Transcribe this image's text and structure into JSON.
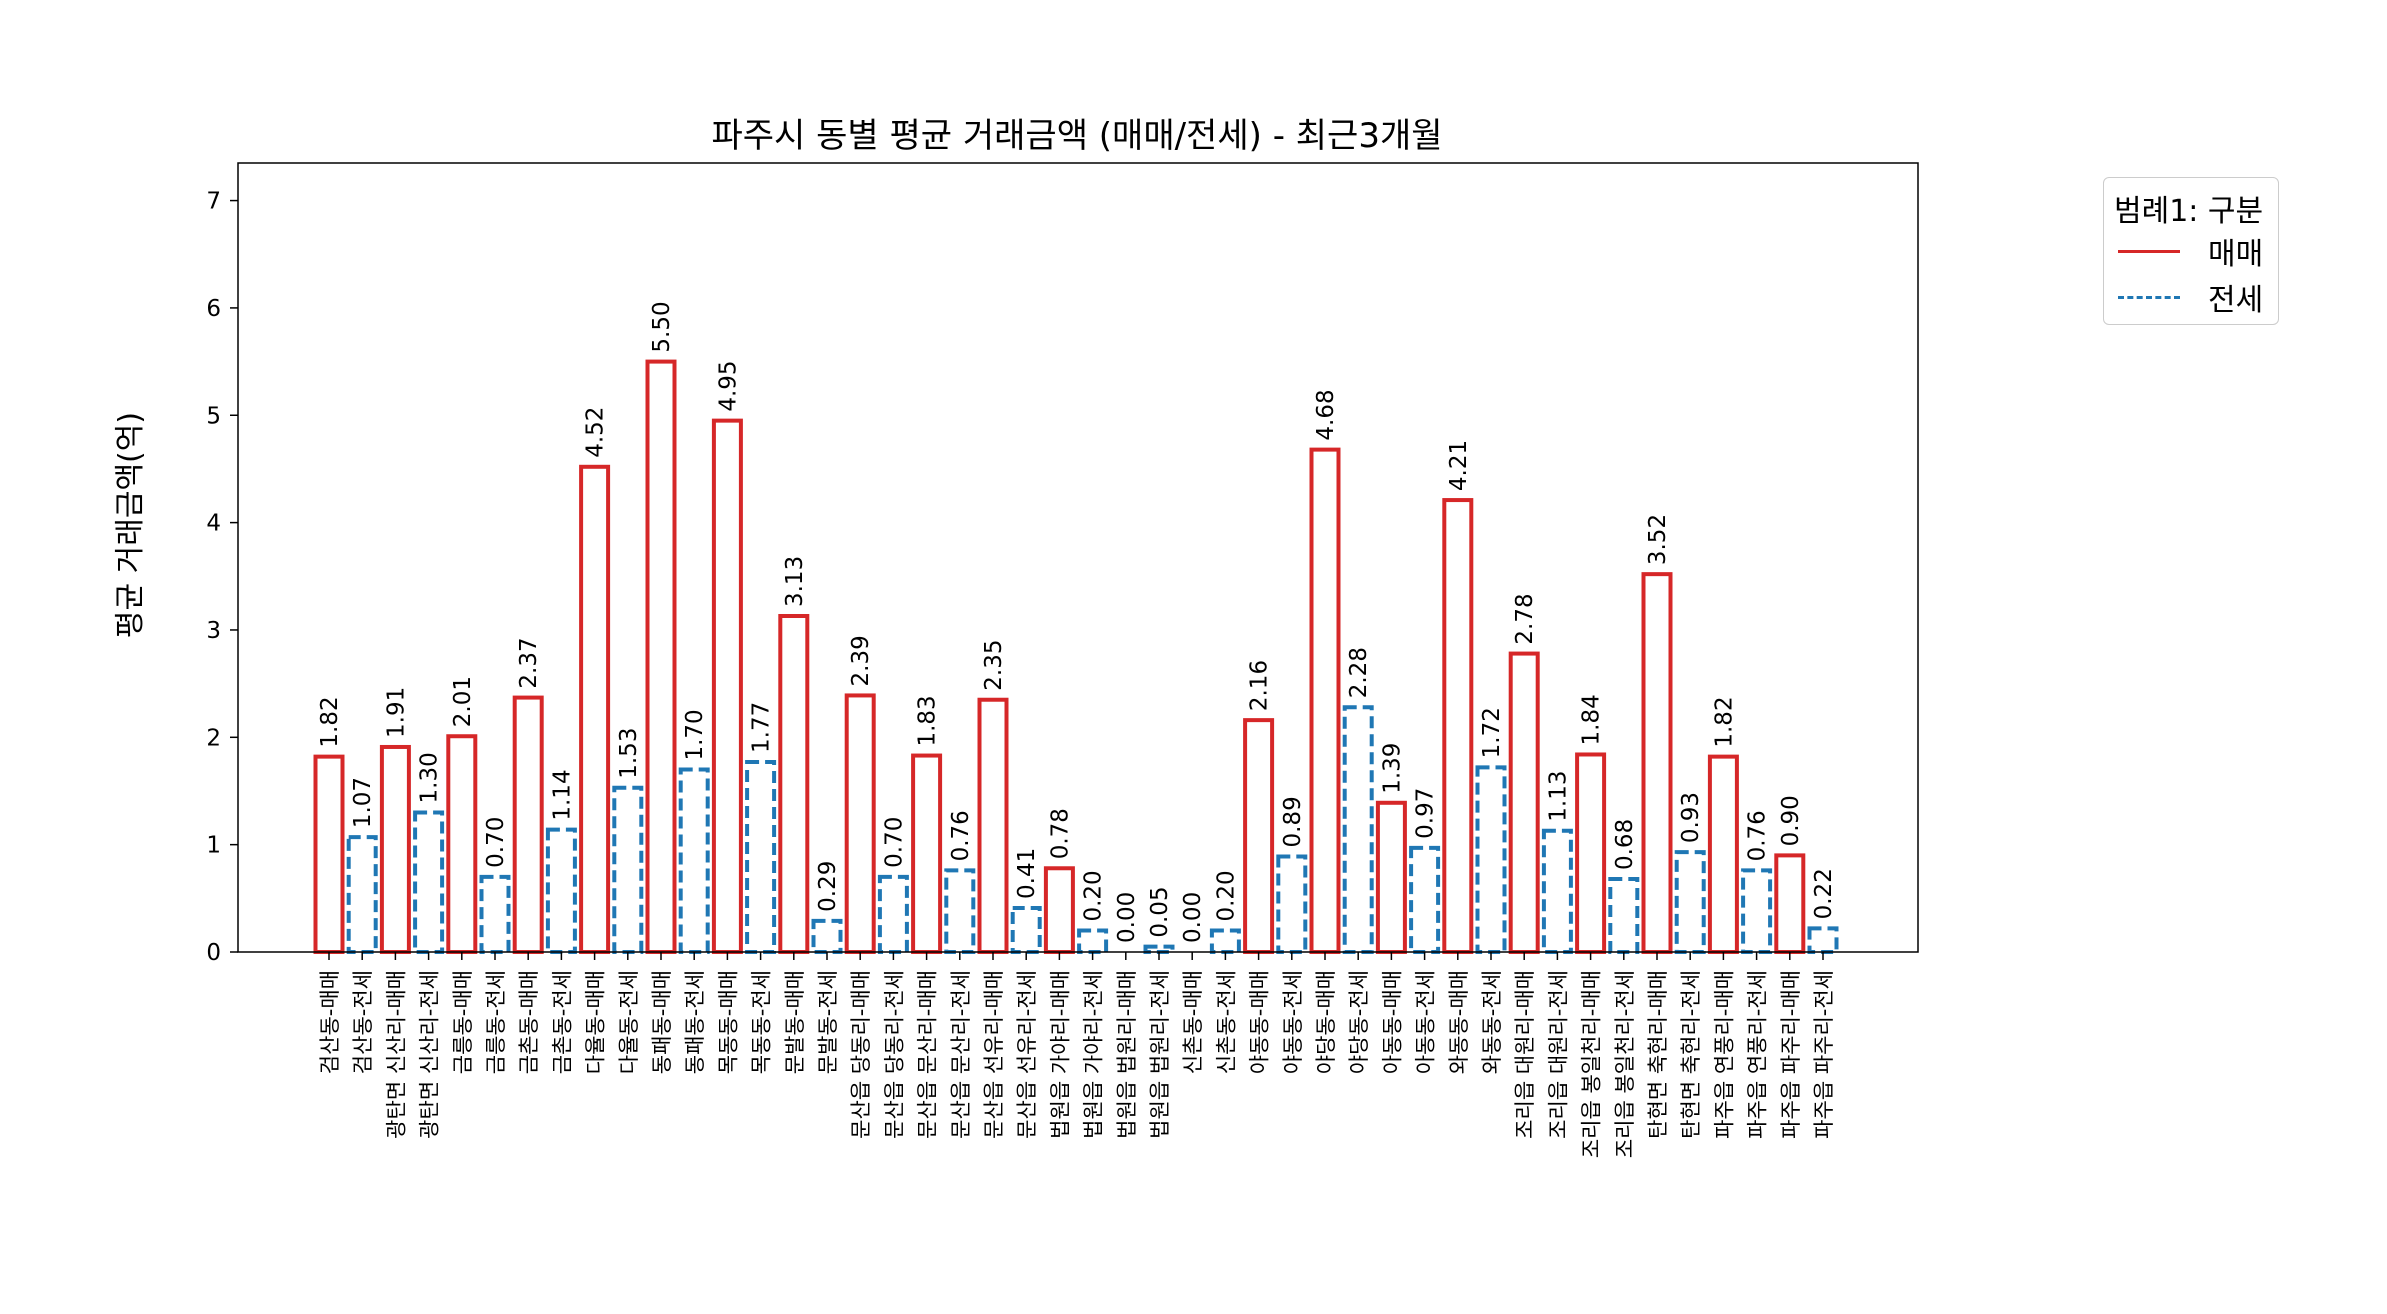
{
  "chart_data": {
    "type": "bar",
    "title": "파주시 동별 평균 거래금액 (매매/전세) - 최근3개월",
    "xlabel": "",
    "ylabel": "평균 거래금액(억)",
    "ylim": [
      0,
      7.35
    ],
    "yticks": [
      "0",
      "1",
      "2",
      "3",
      "4",
      "5",
      "6",
      "7"
    ],
    "legend": {
      "title": "범례1: 구분",
      "placement": "outside-top-right",
      "entries": [
        {
          "name": "매매",
          "color": "#d62728",
          "style": "solid"
        },
        {
          "name": "전세",
          "color": "#1f77b4",
          "style": "dashed"
        }
      ]
    },
    "categories": [
      "검산동-매매",
      "검산동-전세",
      "광탄면 신산리-매매",
      "광탄면 신산리-전세",
      "금릉동-매매",
      "금릉동-전세",
      "금촌동-매매",
      "금촌동-전세",
      "다율동-매매",
      "다율동-전세",
      "동패동-매매",
      "동패동-전세",
      "목동동-매매",
      "목동동-전세",
      "문발동-매매",
      "문발동-전세",
      "문산읍 당동리-매매",
      "문산읍 당동리-전세",
      "문산읍 문산리-매매",
      "문산읍 문산리-전세",
      "문산읍 선유리-매매",
      "문산읍 선유리-전세",
      "법원읍 가야리-매매",
      "법원읍 가야리-전세",
      "법원읍 법원리-매매",
      "법원읍 법원리-전세",
      "신촌동-매매",
      "신촌동-전세",
      "야동동-매매",
      "야동동-전세",
      "야당동-매매",
      "야당동-전세",
      "아동동-매매",
      "아동동-전세",
      "와동동-매매",
      "와동동-전세",
      "조리읍 대원리-매매",
      "조리읍 대원리-전세",
      "조리읍 봉일천리-매매",
      "조리읍 봉일천리-전세",
      "탄현면 축현리-매매",
      "탄현면 축현리-전세",
      "파주읍 연풍리-매매",
      "파주읍 연풍리-전세",
      "파주읍 파주리-매매",
      "파주읍 파주리-전세"
    ],
    "values": [
      1.82,
      1.07,
      1.91,
      1.3,
      2.01,
      0.7,
      2.37,
      1.14,
      4.52,
      1.53,
      5.5,
      1.7,
      4.95,
      1.77,
      3.13,
      0.29,
      2.39,
      0.7,
      1.83,
      0.76,
      2.35,
      0.41,
      0.78,
      0.2,
      0.0,
      0.05,
      0.0,
      0.2,
      2.16,
      0.89,
      4.68,
      2.28,
      1.39,
      0.97,
      4.21,
      1.72,
      2.78,
      1.13,
      1.84,
      0.68,
      3.52,
      0.93,
      1.82,
      0.76,
      0.9,
      0.22
    ],
    "value_labels": [
      "1.82",
      "1.07",
      "1.91",
      "1.30",
      "2.01",
      "0.70",
      "2.37",
      "1.14",
      "4.52",
      "1.53",
      "5.50",
      "1.70",
      "4.95",
      "1.77",
      "3.13",
      "0.29",
      "2.39",
      "0.70",
      "1.83",
      "0.76",
      "2.35",
      "0.41",
      "0.78",
      "0.20",
      "0.00",
      "0.05",
      "0.00",
      "0.20",
      "2.16",
      "0.89",
      "4.68",
      "2.28",
      "1.39",
      "0.97",
      "4.21",
      "1.72",
      "2.78",
      "1.13",
      "1.84",
      "0.68",
      "3.52",
      "0.93",
      "1.82",
      "0.76",
      "0.90",
      "0.22"
    ],
    "series_of_bar": [
      "매매",
      "전세",
      "매매",
      "전세",
      "매매",
      "전세",
      "매매",
      "전세",
      "매매",
      "전세",
      "매매",
      "전세",
      "매매",
      "전세",
      "매매",
      "전세",
      "매매",
      "전세",
      "매매",
      "전세",
      "매매",
      "전세",
      "매매",
      "전세",
      "매매",
      "전세",
      "매매",
      "전세",
      "매매",
      "전세",
      "매매",
      "전세",
      "매매",
      "전세",
      "매매",
      "전세",
      "매매",
      "전세",
      "매매",
      "전세",
      "매매",
      "전세",
      "매매",
      "전세",
      "매매",
      "전세"
    ]
  }
}
